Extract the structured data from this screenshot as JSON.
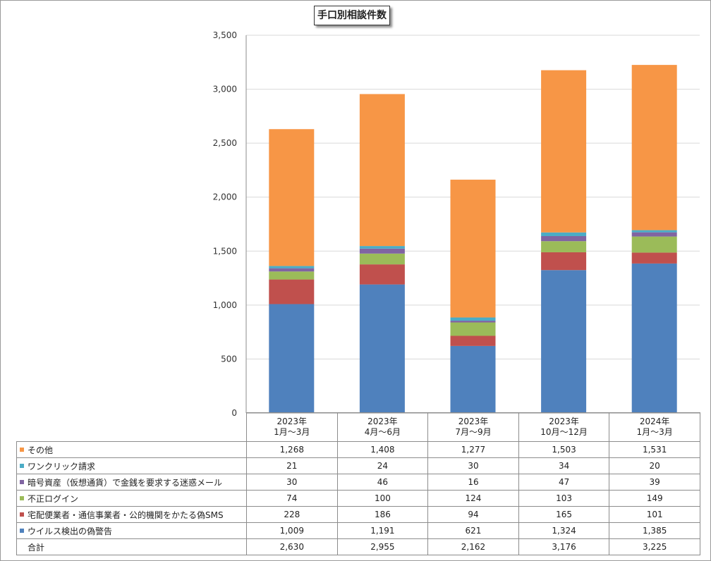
{
  "chart_data": {
    "type": "bar",
    "stacked": true,
    "title": "手口別相談件数",
    "categories": [
      [
        "2023年",
        "1月～3月"
      ],
      [
        "2023年",
        "4月～6月"
      ],
      [
        "2023年",
        "7月～9月"
      ],
      [
        "2023年",
        "10月～12月"
      ],
      [
        "2024年",
        "1月～3月"
      ]
    ],
    "ylim": [
      0,
      3500
    ],
    "yticks": [
      "0",
      "500",
      "1,000",
      "1,500",
      "2,000",
      "2,500",
      "3,000",
      "3,500"
    ],
    "ytick_values": [
      0,
      500,
      1000,
      1500,
      2000,
      2500,
      3000,
      3500
    ],
    "grid": true,
    "legend": "data-table",
    "series": [
      {
        "name": "ウイルス検出の偽警告",
        "color": "#4f81bd",
        "values": [
          1009,
          1191,
          621,
          1324,
          1385
        ],
        "labels": [
          "1,009",
          "1,191",
          "621",
          "1,324",
          "1,385"
        ]
      },
      {
        "name": "宅配便業者・通信事業者・公的機関をかたる偽SMS",
        "color": "#c0504d",
        "values": [
          228,
          186,
          94,
          165,
          101
        ],
        "labels": [
          "228",
          "186",
          "94",
          "165",
          "101"
        ]
      },
      {
        "name": "不正ログイン",
        "color": "#9bbb59",
        "values": [
          74,
          100,
          124,
          103,
          149
        ],
        "labels": [
          "74",
          "100",
          "124",
          "103",
          "149"
        ]
      },
      {
        "name": "暗号資産（仮想通貨）で金銭を要求する迷惑メール",
        "color": "#8064a2",
        "values": [
          30,
          46,
          16,
          47,
          39
        ],
        "labels": [
          "30",
          "46",
          "16",
          "47",
          "39"
        ]
      },
      {
        "name": "ワンクリック請求",
        "color": "#4bacc6",
        "values": [
          21,
          24,
          30,
          34,
          20
        ],
        "labels": [
          "21",
          "24",
          "30",
          "34",
          "20"
        ]
      },
      {
        "name": "その他",
        "color": "#f79646",
        "values": [
          1268,
          1408,
          1277,
          1503,
          1531
        ],
        "labels": [
          "1,268",
          "1,408",
          "1,277",
          "1,503",
          "1,531"
        ]
      }
    ],
    "total": {
      "name": "合計",
      "values": [
        2630,
        2955,
        2162,
        3176,
        3225
      ],
      "labels": [
        "2,630",
        "2,955",
        "2,162",
        "3,176",
        "3,225"
      ]
    }
  }
}
